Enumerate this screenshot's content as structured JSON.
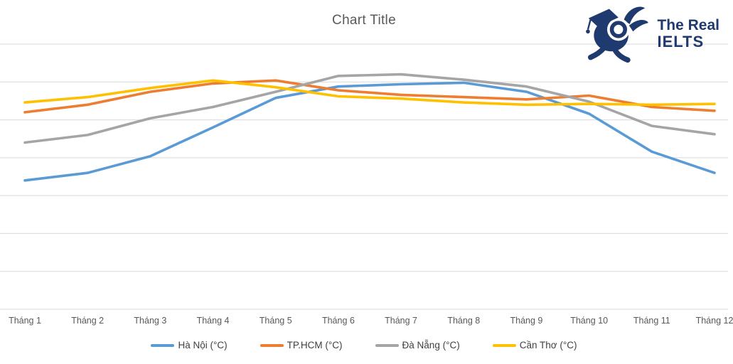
{
  "logo": {
    "line1": "The Real",
    "line2": "IELTS",
    "color": "#1e3a6e",
    "mascot": "rabbit-with-graduation-cap"
  },
  "chart_data": {
    "type": "line",
    "title": "Chart Title",
    "title_color": "#595959",
    "categories": [
      "Tháng 1",
      "Tháng 2",
      "Tháng 3",
      "Tháng 4",
      "Tháng 5",
      "Tháng 6",
      "Tháng 7",
      "Tháng 8",
      "Tháng 9",
      "Tháng 10",
      "Tháng 11",
      "Tháng 12"
    ],
    "series": [
      {
        "name": "Hà Nội (°C)",
        "color": "#5B9BD5",
        "values": [
          17.0,
          18.0,
          20.2,
          24.0,
          27.9,
          29.4,
          29.7,
          29.9,
          28.7,
          25.8,
          20.8,
          18.0
        ]
      },
      {
        "name": "TP.HCM (°C)",
        "color": "#ED7D31",
        "values": [
          26.0,
          27.0,
          28.7,
          29.8,
          30.2,
          28.9,
          28.3,
          28.0,
          27.7,
          28.2,
          26.7,
          26.2
        ]
      },
      {
        "name": "Đà Nẵng (°C)",
        "color": "#A5A5A5",
        "values": [
          22.0,
          23.0,
          25.2,
          26.7,
          28.7,
          30.8,
          31.0,
          30.3,
          29.4,
          27.4,
          24.2,
          23.1
        ]
      },
      {
        "name": "Cần Thơ (°C)",
        "color": "#FFC000",
        "values": [
          27.3,
          28.0,
          29.2,
          30.2,
          29.3,
          28.1,
          27.8,
          27.3,
          27.0,
          27.1,
          27.0,
          27.1
        ]
      }
    ],
    "xlabel": "",
    "ylabel": "",
    "ylim": [
      0,
      35
    ],
    "ytick_step": 5,
    "yaxis_labels_visible": false,
    "grid": true,
    "gridline_color": "#d9d9d9",
    "legend_position": "bottom"
  }
}
